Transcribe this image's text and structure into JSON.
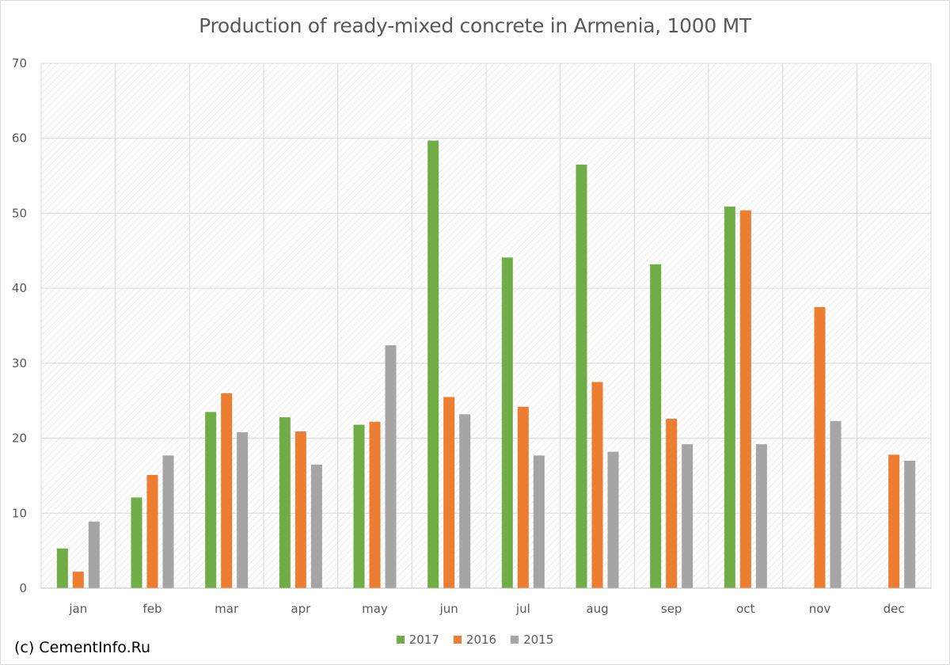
{
  "chart_data": {
    "type": "bar",
    "title": "Production of ready-mixed concrete in Armenia, 1000 MT",
    "xlabel": "",
    "ylabel": "",
    "categories": [
      "jan",
      "feb",
      "mar",
      "apr",
      "may",
      "jun",
      "jul",
      "aug",
      "sep",
      "oct",
      "nov",
      "dec"
    ],
    "ylim": [
      0,
      70
    ],
    "yticks": [
      0,
      10,
      20,
      30,
      40,
      50,
      60,
      70
    ],
    "grid": true,
    "legend_position": "bottom",
    "series": [
      {
        "name": "2017",
        "color": "#70ad47",
        "values": [
          5.3,
          12.1,
          23.5,
          22.8,
          21.8,
          59.7,
          44.1,
          56.5,
          43.2,
          50.9,
          null,
          null
        ]
      },
      {
        "name": "2016",
        "color": "#ed7d31",
        "values": [
          2.2,
          15.1,
          26.0,
          20.9,
          22.2,
          25.5,
          24.2,
          27.5,
          22.6,
          50.4,
          37.5,
          17.8
        ]
      },
      {
        "name": "2015",
        "color": "#a5a5a5",
        "values": [
          8.9,
          17.7,
          20.8,
          16.5,
          32.4,
          23.2,
          17.7,
          18.2,
          19.2,
          19.2,
          22.3,
          17.0
        ]
      }
    ]
  },
  "footer": {
    "copyright": "(c) CementInfo.Ru"
  }
}
